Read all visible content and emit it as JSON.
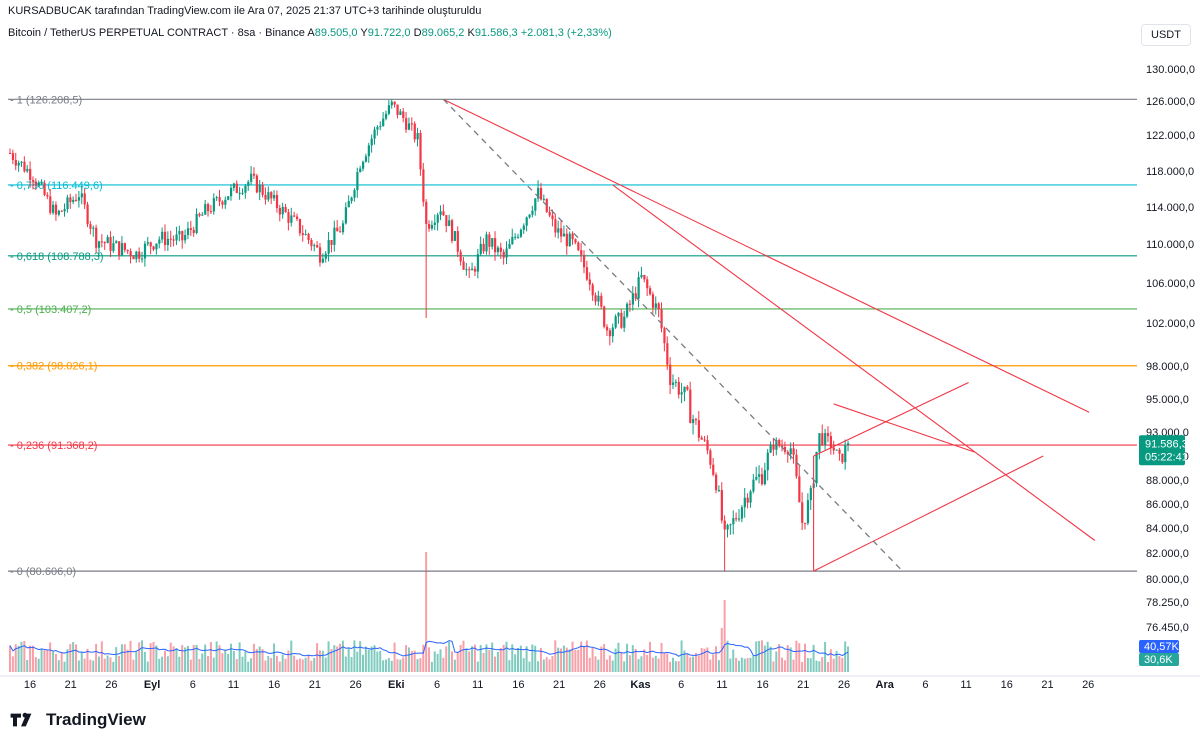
{
  "header": {
    "attribution": "KURSADBUCAK tarafından TradingView.com ile Ara 07, 2025 21:37 UTC+3 tarihinde oluşturuldu",
    "symbol": "Bitcoin / TetherUS PERPETUAL CONTRACT · 8sa · Binance",
    "o_label": "A",
    "o_value": "89.505,0",
    "h_label": "Y",
    "h_value": "91.722,0",
    "l_label": "D",
    "l_value": "89.065,2",
    "c_label": "K",
    "c_value": "91.586,3",
    "change": "+2.081,3 (+2,33%)",
    "currency": "USDT"
  },
  "footer": {
    "brand": "TradingView"
  },
  "colors": {
    "up": "#089981",
    "down": "#f23645",
    "fib_1": "#787b86",
    "fib_786": "#00bcd4",
    "fib_618": "#089981",
    "fib_5": "#4caf50",
    "fib_382": "#ff9800",
    "fib_236": "#f23645",
    "fib_0": "#787b86",
    "trendline": "#f23645",
    "dashed": "#787b86",
    "vol_ma": "#2962ff"
  },
  "chart_data": {
    "type": "candlestick",
    "price_axis_labels": [
      "130.000,0",
      "126.000,0",
      "122.000,0",
      "118.000,0",
      "114.000,0",
      "110.000,0",
      "106.000,0",
      "102.000,0",
      "98.000,0",
      "95.000,0",
      "93.000,0",
      "90.000,0",
      "88.000,0",
      "86.000,0",
      "84.000,0",
      "82.000,0",
      "80.000,0",
      "78.250,0",
      "76.450,0"
    ],
    "time_axis_labels": [
      "16",
      "21",
      "26",
      "Eyl",
      "6",
      "11",
      "16",
      "21",
      "26",
      "Eki",
      "6",
      "11",
      "16",
      "21",
      "26",
      "Kas",
      "6",
      "11",
      "16",
      "21",
      "26",
      "Ara",
      "6",
      "11",
      "16",
      "21",
      "26"
    ],
    "fib_levels": [
      {
        "label": "1 (126.208,5)",
        "price": 126208.5,
        "color": "#787b86"
      },
      {
        "label": "0,786 (116.449,6)",
        "price": 116449.6,
        "color": "#00bcd4"
      },
      {
        "label": "0,618 (108.788,3)",
        "price": 108788.3,
        "color": "#089981"
      },
      {
        "label": "0,5 (103.407,2)",
        "price": 103407.2,
        "color": "#4caf50"
      },
      {
        "label": "0,382 (98.026,1)",
        "price": 98026.1,
        "color": "#ff9800"
      },
      {
        "label": "0,236 (91.368,2)",
        "price": 91368.2,
        "color": "#f23645"
      },
      {
        "label": "0 (80.606,0)",
        "price": 80606.0,
        "color": "#787b86"
      }
    ],
    "last_price": {
      "label": "91.586,3",
      "countdown": "05:22:41",
      "price": 91586.3
    },
    "volume_labels": [
      {
        "label": "40,57K",
        "color": "#2962ff"
      },
      {
        "label": "30,6K",
        "color": "#26a69a"
      }
    ],
    "anchors": [
      {
        "t": 0,
        "p": 120000
      },
      {
        "t": 8,
        "p": 117500
      },
      {
        "t": 16,
        "p": 113000
      },
      {
        "t": 24,
        "p": 115500
      },
      {
        "t": 30,
        "p": 110500
      },
      {
        "t": 36,
        "p": 109800
      },
      {
        "t": 44,
        "p": 109000
      },
      {
        "t": 52,
        "p": 110600
      },
      {
        "t": 60,
        "p": 110500
      },
      {
        "t": 68,
        "p": 113500
      },
      {
        "t": 76,
        "p": 115500
      },
      {
        "t": 84,
        "p": 117000
      },
      {
        "t": 92,
        "p": 114500
      },
      {
        "t": 100,
        "p": 112000
      },
      {
        "t": 108,
        "p": 109000
      },
      {
        "t": 116,
        "p": 112000
      },
      {
        "t": 122,
        "p": 119000
      },
      {
        "t": 128,
        "p": 123000
      },
      {
        "t": 133,
        "p": 125500
      },
      {
        "t": 137,
        "p": 124000
      },
      {
        "t": 142,
        "p": 121500
      },
      {
        "t": 145,
        "p": 112000
      },
      {
        "t": 150,
        "p": 114000
      },
      {
        "t": 155,
        "p": 110500
      },
      {
        "t": 160,
        "p": 106500
      },
      {
        "t": 166,
        "p": 110500
      },
      {
        "t": 172,
        "p": 108500
      },
      {
        "t": 178,
        "p": 112000
      },
      {
        "t": 184,
        "p": 115500
      },
      {
        "t": 190,
        "p": 111500
      },
      {
        "t": 196,
        "p": 110000
      },
      {
        "t": 202,
        "p": 106500
      },
      {
        "t": 208,
        "p": 101500
      },
      {
        "t": 214,
        "p": 102500
      },
      {
        "t": 220,
        "p": 106500
      },
      {
        "t": 226,
        "p": 103000
      },
      {
        "t": 230,
        "p": 97000
      },
      {
        "t": 236,
        "p": 95000
      },
      {
        "t": 242,
        "p": 91500
      },
      {
        "t": 246,
        "p": 88000
      },
      {
        "t": 249,
        "p": 83000
      },
      {
        "t": 253,
        "p": 85000
      },
      {
        "t": 258,
        "p": 87500
      },
      {
        "t": 262,
        "p": 88500
      },
      {
        "t": 266,
        "p": 91500
      },
      {
        "t": 272,
        "p": 91000
      },
      {
        "t": 276,
        "p": 84500
      },
      {
        "t": 279,
        "p": 86500
      },
      {
        "t": 282,
        "p": 92500
      },
      {
        "t": 286,
        "p": 91500
      },
      {
        "t": 289,
        "p": 89500
      },
      {
        "t": 292,
        "p": 91586.3
      }
    ]
  }
}
